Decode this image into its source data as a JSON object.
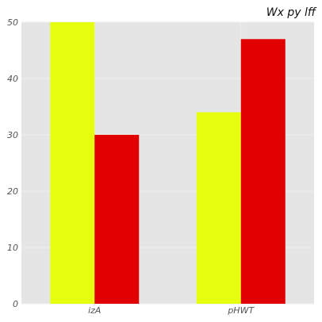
{
  "chart_data": {
    "type": "bar",
    "title": "Wx py lff",
    "xlabel": "",
    "ylabel": "",
    "categories": [
      "izA",
      "pHWT"
    ],
    "series": [
      {
        "values": [
          50,
          34
        ],
        "color": "#e5ff0e"
      },
      {
        "values": [
          30,
          47
        ],
        "color": "#e00000"
      }
    ],
    "ylim": [
      0,
      50
    ],
    "yticks": [
      "0",
      "10",
      "20",
      "30",
      "40",
      "50"
    ],
    "grid": true,
    "legend": "none",
    "background_color": "#e5e5e5",
    "grid_color": "#eeeeee"
  }
}
